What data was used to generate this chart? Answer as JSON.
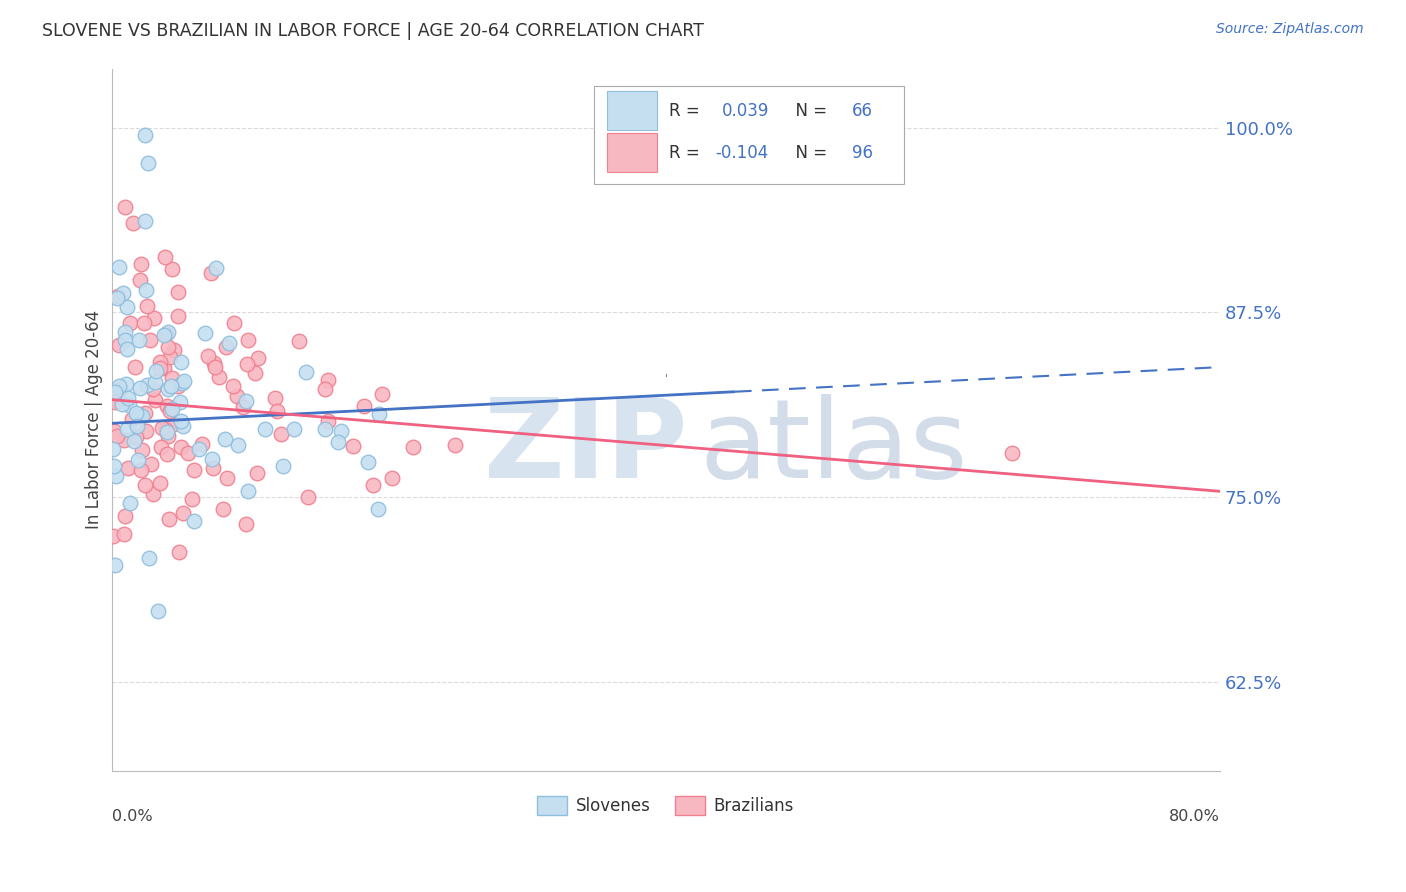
{
  "title": "SLOVENE VS BRAZILIAN IN LABOR FORCE | AGE 20-64 CORRELATION CHART",
  "source": "Source: ZipAtlas.com",
  "ylabel": "In Labor Force | Age 20-64",
  "yticks": [
    0.625,
    0.75,
    0.875,
    1.0
  ],
  "ytick_labels": [
    "62.5%",
    "75.0%",
    "87.5%",
    "100.0%"
  ],
  "xlim": [
    0.0,
    0.8
  ],
  "ylim": [
    0.565,
    1.04
  ],
  "slovene_color": "#90bedd",
  "slovene_fill": "#c5dff0",
  "brazilian_color": "#f08090",
  "brazilian_fill": "#f8b8c2",
  "trend_slovene_color": "#4472c4",
  "trend_brazilian_color": "#f06080",
  "trend_slovene_x0": 0.0,
  "trend_slovene_y0": 0.8,
  "trend_slovene_x1": 0.45,
  "trend_slovene_y1": 0.82,
  "trend_slovene_x2": 0.8,
  "trend_slovene_y2": 0.838,
  "trend_brazilian_x0": 0.0,
  "trend_brazilian_y0": 0.816,
  "trend_brazilian_x1": 0.8,
  "trend_brazilian_y1": 0.754,
  "background_color": "#ffffff",
  "grid_color": "#cccccc",
  "watermark_zip_color": "#c8d8ea",
  "watermark_atlas_color": "#c0cfe0"
}
